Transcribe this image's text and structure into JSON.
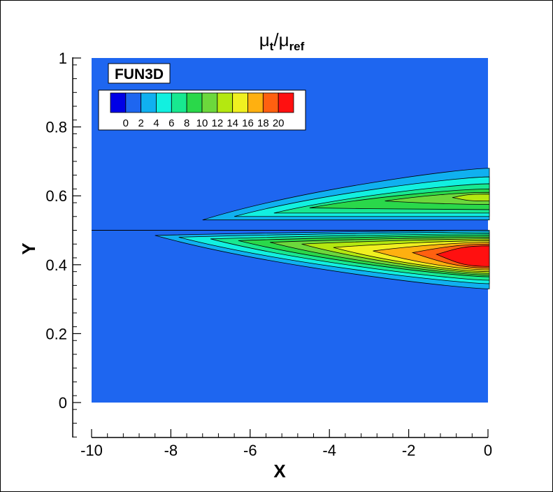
{
  "chart_data": {
    "type": "heatmap",
    "title": {
      "main": "μ",
      "sub1": "t",
      "sep": "/",
      "main2": "μ",
      "sub2": "ref"
    },
    "xlabel": "X",
    "ylabel": "Y",
    "xlim": [
      -10,
      0
    ],
    "ylim": [
      -0.1,
      1
    ],
    "xticks": [
      "-10",
      "-8",
      "-6",
      "-4",
      "-2",
      "0"
    ],
    "yticks": [
      "0",
      "0.2",
      "0.4",
      "0.6",
      "0.8",
      "1"
    ],
    "xtick_values": [
      -10,
      -8,
      -6,
      -4,
      -2,
      0
    ],
    "ytick_values": [
      0,
      0.2,
      0.4,
      0.6,
      0.8,
      1
    ],
    "grid": false,
    "domain": {
      "x": [
        -10,
        0
      ],
      "y": [
        0,
        1
      ]
    },
    "background_color": "#1e66f0",
    "splitter_line_y": 0.5,
    "label_box": "FUN3D",
    "legend": {
      "placement": "top-left",
      "labels": [
        "0",
        "2",
        "4",
        "6",
        "8",
        "10",
        "12",
        "14",
        "16",
        "18",
        "20"
      ],
      "colors": [
        "#0000e6",
        "#1e66f0",
        "#10b0f0",
        "#12f0e0",
        "#18e890",
        "#2ad84a",
        "#6cd83c",
        "#b4e810",
        "#f0f020",
        "#ffb010",
        "#ff6010",
        "#ff1010"
      ]
    },
    "series": [
      {
        "name": "upper",
        "levels": [
          {
            "color": "#10b0f0",
            "tip_x": -7.2,
            "y_top": 0.68,
            "y_bot": 0.53,
            "tip_y": 0.53
          },
          {
            "color": "#12f0e0",
            "tip_x": -6.4,
            "y_top": 0.655,
            "y_bot": 0.54,
            "tip_y": 0.54
          },
          {
            "color": "#18e890",
            "tip_x": -5.4,
            "y_top": 0.635,
            "y_bot": 0.55,
            "tip_y": 0.55
          },
          {
            "color": "#2ad84a",
            "tip_x": -4.5,
            "y_top": 0.62,
            "y_bot": 0.56,
            "tip_y": 0.565
          },
          {
            "color": "#6cd83c",
            "tip_x": -2.6,
            "y_top": 0.61,
            "y_bot": 0.575,
            "tip_y": 0.585
          },
          {
            "color": "#b4e810",
            "tip_x": -0.9,
            "y_top": 0.605,
            "y_bot": 0.585,
            "tip_y": 0.595
          }
        ]
      },
      {
        "name": "lower",
        "levels": [
          {
            "color": "#10b0f0",
            "tip_x": -8.4,
            "y_top": 0.5,
            "y_bot": 0.33,
            "tip_y": 0.485
          },
          {
            "color": "#12f0e0",
            "tip_x": -7.8,
            "y_top": 0.495,
            "y_bot": 0.345,
            "tip_y": 0.48
          },
          {
            "color": "#18e890",
            "tip_x": -7.0,
            "y_top": 0.49,
            "y_bot": 0.355,
            "tip_y": 0.475
          },
          {
            "color": "#2ad84a",
            "tip_x": -6.3,
            "y_top": 0.485,
            "y_bot": 0.365,
            "tip_y": 0.47
          },
          {
            "color": "#6cd83c",
            "tip_x": -5.5,
            "y_top": 0.48,
            "y_bot": 0.37,
            "tip_y": 0.465
          },
          {
            "color": "#b4e810",
            "tip_x": -4.7,
            "y_top": 0.475,
            "y_bot": 0.375,
            "tip_y": 0.46
          },
          {
            "color": "#f0f020",
            "tip_x": -3.9,
            "y_top": 0.47,
            "y_bot": 0.38,
            "tip_y": 0.45
          },
          {
            "color": "#ffb010",
            "tip_x": -2.9,
            "y_top": 0.465,
            "y_bot": 0.385,
            "tip_y": 0.44
          },
          {
            "color": "#ff6010",
            "tip_x": -1.9,
            "y_top": 0.46,
            "y_bot": 0.39,
            "tip_y": 0.435
          },
          {
            "color": "#ff1010",
            "tip_x": -1.3,
            "y_top": 0.455,
            "y_bot": 0.395,
            "tip_y": 0.43
          }
        ]
      }
    ]
  }
}
